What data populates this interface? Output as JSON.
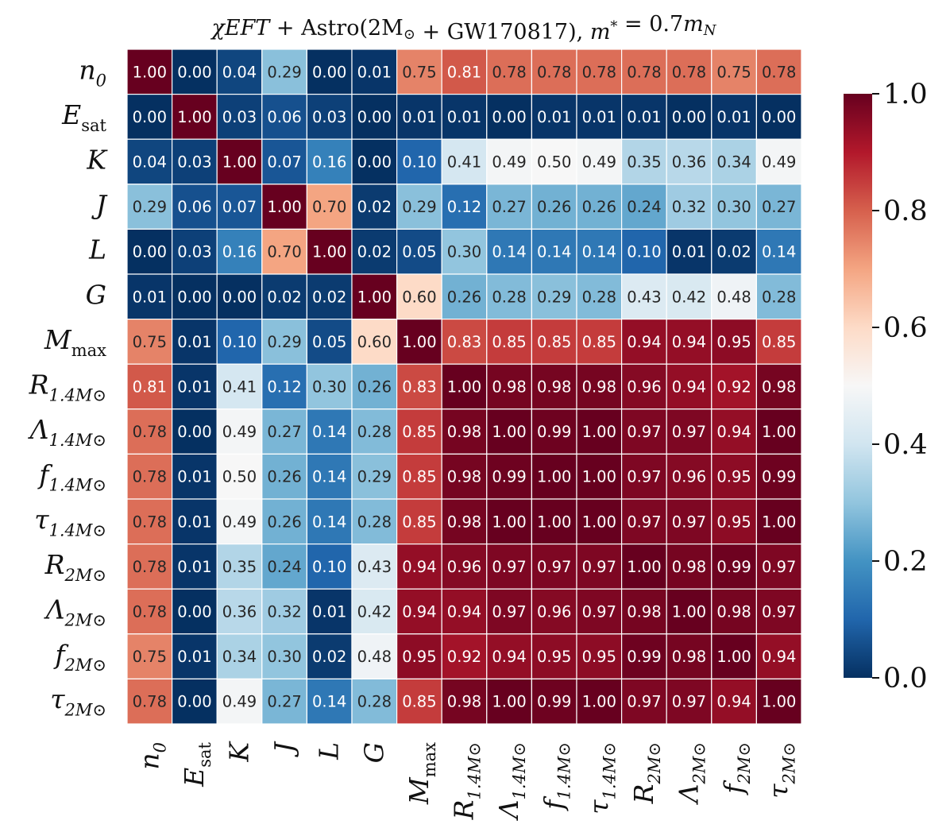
{
  "chart_data": {
    "type": "heatmap",
    "title": "χEFT + Astro(2M⊙ + GW170817),  m* = 0.7m_N",
    "labels": [
      {
        "base": "n",
        "sub": "0"
      },
      {
        "base": "E",
        "sub": "sat"
      },
      {
        "base": "K",
        "sub": ""
      },
      {
        "base": "J",
        "sub": ""
      },
      {
        "base": "L",
        "sub": ""
      },
      {
        "base": "G",
        "sub": ""
      },
      {
        "base": "M",
        "sub": "max"
      },
      {
        "base": "R",
        "sub": "1.4M⊙"
      },
      {
        "base": "Λ",
        "sub": "1.4M⊙"
      },
      {
        "base": "f",
        "sub": "1.4M⊙"
      },
      {
        "base": "τ",
        "sub": "1.4M⊙"
      },
      {
        "base": "R",
        "sub": "2M⊙"
      },
      {
        "base": "Λ",
        "sub": "2M⊙"
      },
      {
        "base": "f",
        "sub": "2M⊙"
      },
      {
        "base": "τ",
        "sub": "2M⊙"
      }
    ],
    "matrix": [
      [
        1.0,
        0.0,
        0.04,
        0.29,
        0.0,
        0.01,
        0.75,
        0.81,
        0.78,
        0.78,
        0.78,
        0.78,
        0.78,
        0.75,
        0.78
      ],
      [
        0.0,
        1.0,
        0.03,
        0.06,
        0.03,
        0.0,
        0.01,
        0.01,
        0.0,
        0.01,
        0.01,
        0.01,
        0.0,
        0.01,
        0.0
      ],
      [
        0.04,
        0.03,
        1.0,
        0.07,
        0.16,
        0.0,
        0.1,
        0.41,
        0.49,
        0.5,
        0.49,
        0.35,
        0.36,
        0.34,
        0.49
      ],
      [
        0.29,
        0.06,
        0.07,
        1.0,
        0.7,
        0.02,
        0.29,
        0.12,
        0.27,
        0.26,
        0.26,
        0.24,
        0.32,
        0.3,
        0.27
      ],
      [
        0.0,
        0.03,
        0.16,
        0.7,
        1.0,
        0.02,
        0.05,
        0.3,
        0.14,
        0.14,
        0.14,
        0.1,
        0.01,
        0.02,
        0.14
      ],
      [
        0.01,
        0.0,
        0.0,
        0.02,
        0.02,
        1.0,
        0.6,
        0.26,
        0.28,
        0.29,
        0.28,
        0.43,
        0.42,
        0.48,
        0.28
      ],
      [
        0.75,
        0.01,
        0.1,
        0.29,
        0.05,
        0.6,
        1.0,
        0.83,
        0.85,
        0.85,
        0.85,
        0.94,
        0.94,
        0.95,
        0.85
      ],
      [
        0.81,
        0.01,
        0.41,
        0.12,
        0.3,
        0.26,
        0.83,
        1.0,
        0.98,
        0.98,
        0.98,
        0.96,
        0.94,
        0.92,
        0.98
      ],
      [
        0.78,
        0.0,
        0.49,
        0.27,
        0.14,
        0.28,
        0.85,
        0.98,
        1.0,
        0.99,
        1.0,
        0.97,
        0.97,
        0.94,
        1.0
      ],
      [
        0.78,
        0.01,
        0.5,
        0.26,
        0.14,
        0.29,
        0.85,
        0.98,
        0.99,
        1.0,
        1.0,
        0.97,
        0.96,
        0.95,
        0.99
      ],
      [
        0.78,
        0.01,
        0.49,
        0.26,
        0.14,
        0.28,
        0.85,
        0.98,
        1.0,
        1.0,
        1.0,
        0.97,
        0.97,
        0.95,
        1.0
      ],
      [
        0.78,
        0.01,
        0.35,
        0.24,
        0.1,
        0.43,
        0.94,
        0.96,
        0.97,
        0.97,
        0.97,
        1.0,
        0.98,
        0.99,
        0.97
      ],
      [
        0.78,
        0.0,
        0.36,
        0.32,
        0.01,
        0.42,
        0.94,
        0.94,
        0.97,
        0.96,
        0.97,
        0.98,
        1.0,
        0.98,
        0.97
      ],
      [
        0.75,
        0.01,
        0.34,
        0.3,
        0.02,
        0.48,
        0.95,
        0.92,
        0.94,
        0.95,
        0.95,
        0.99,
        0.98,
        1.0,
        0.94
      ],
      [
        0.78,
        0.0,
        0.49,
        0.27,
        0.14,
        0.28,
        0.85,
        0.98,
        1.0,
        0.99,
        1.0,
        0.97,
        0.97,
        0.94,
        1.0
      ]
    ],
    "value_format": "0.00",
    "colormap": "RdBu_r",
    "colormap_stops": [
      "#053061",
      "#2166ac",
      "#4393c3",
      "#92c5de",
      "#d1e5f0",
      "#f7f7f7",
      "#fddbc7",
      "#f4a582",
      "#d6604d",
      "#b2182b",
      "#67001f"
    ],
    "vmin": 0.0,
    "vmax": 1.0,
    "colorbar": {
      "ticks": [
        0.0,
        0.2,
        0.4,
        0.6,
        0.8,
        1.0
      ],
      "tick_labels": [
        "0.0",
        "0.2",
        "0.4",
        "0.6",
        "0.8",
        "1.0"
      ]
    }
  }
}
